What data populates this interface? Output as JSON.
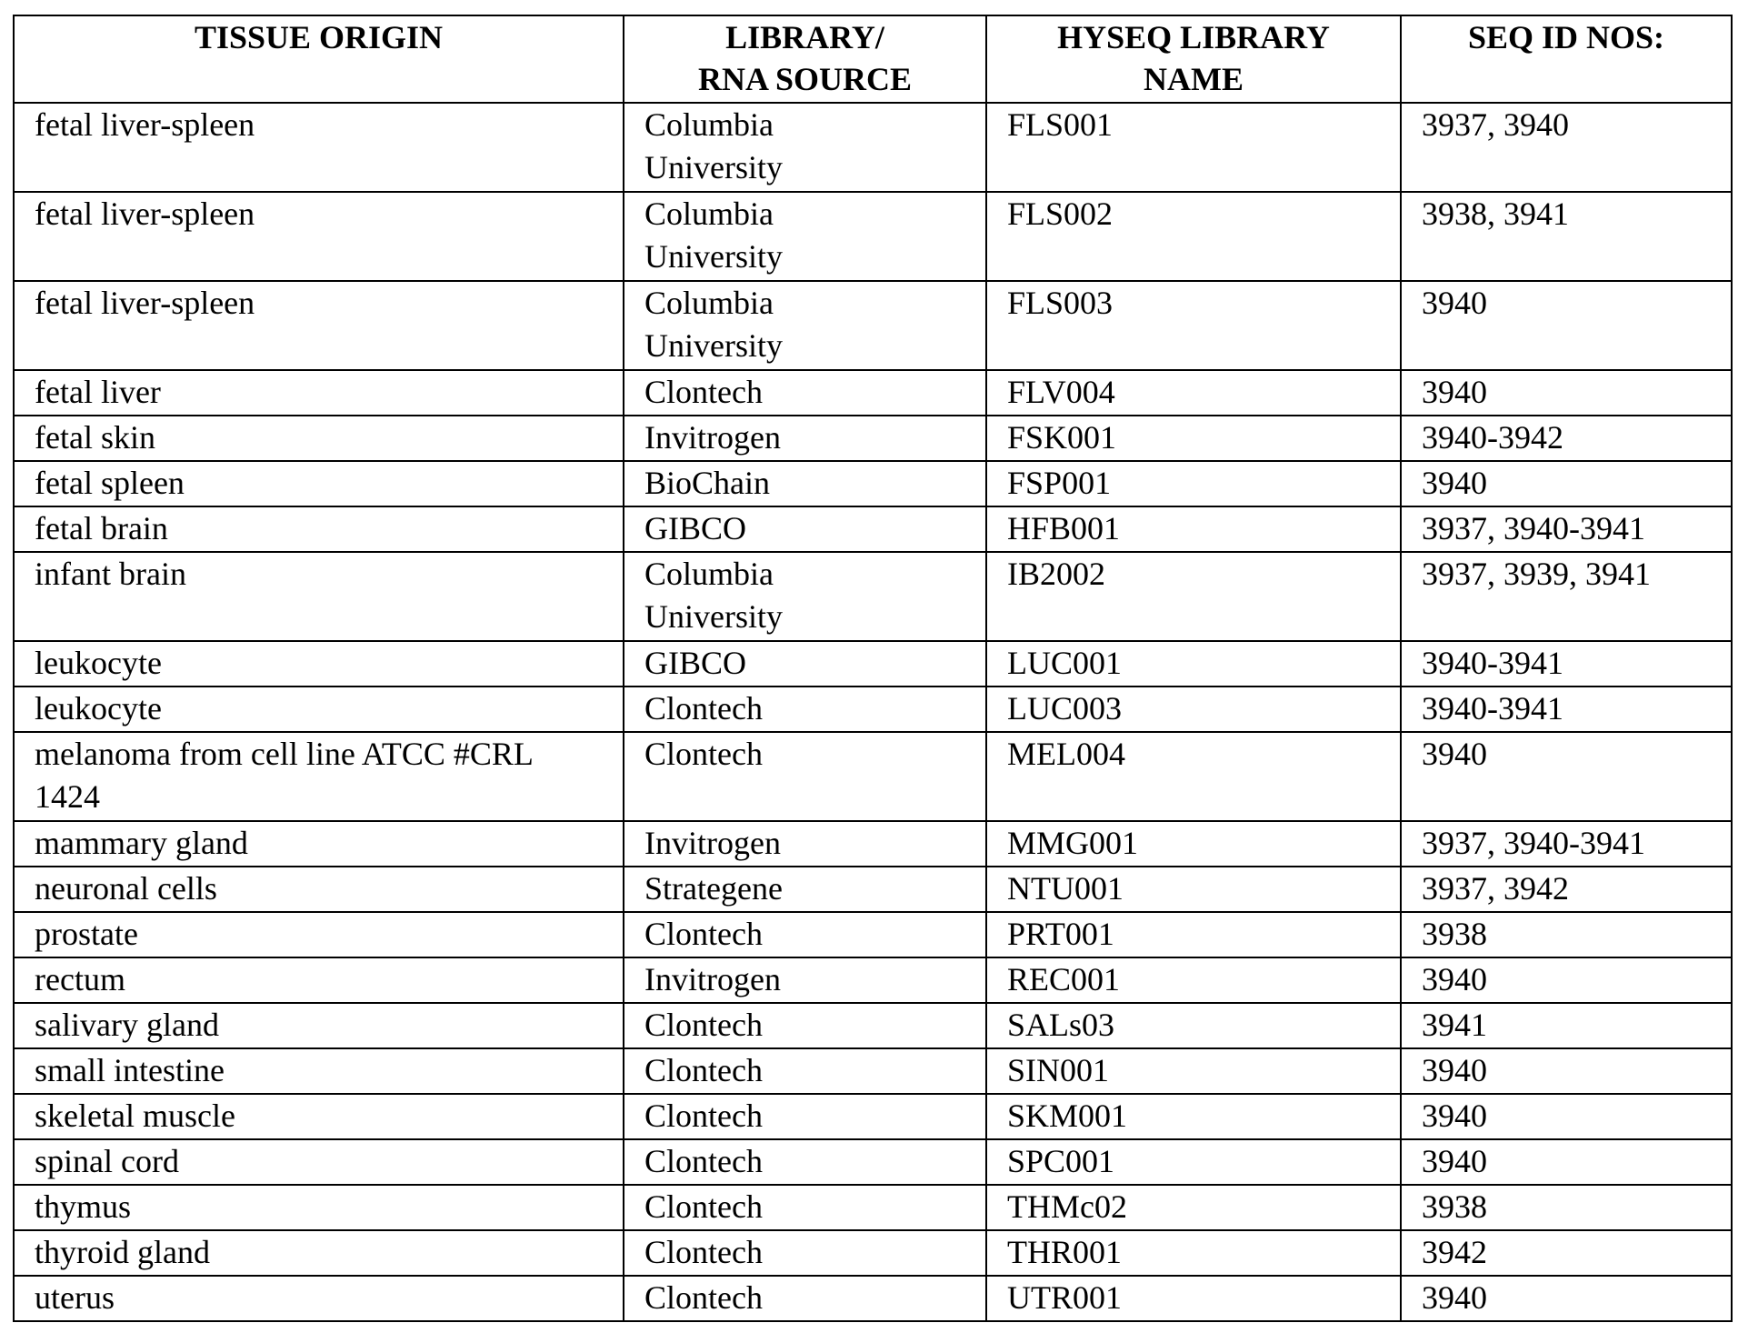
{
  "table": {
    "headers": [
      "TISSUE ORIGIN",
      "LIBRARY/\nRNA SOURCE",
      "HYSEQ LIBRARY\nNAME",
      "SEQ ID NOS:"
    ],
    "rows": [
      [
        "fetal liver-spleen",
        "Columbia University",
        "FLS001",
        "3937, 3940"
      ],
      [
        "fetal liver-spleen",
        "Columbia University",
        "FLS002",
        "3938, 3941"
      ],
      [
        "fetal liver-spleen",
        "Columbia University",
        "FLS003",
        "3940"
      ],
      [
        "fetal liver",
        "Clontech",
        "FLV004",
        "3940"
      ],
      [
        "fetal skin",
        "Invitrogen",
        "FSK001",
        "3940-3942"
      ],
      [
        "fetal spleen",
        "BioChain",
        "FSP001",
        "3940"
      ],
      [
        "fetal brain",
        "GIBCO",
        "HFB001",
        "3937, 3940-3941"
      ],
      [
        "infant brain",
        "Columbia University",
        "IB2002",
        "3937, 3939, 3941"
      ],
      [
        "leukocyte",
        "GIBCO",
        "LUC001",
        "3940-3941"
      ],
      [
        "leukocyte",
        "Clontech",
        "LUC003",
        "3940-3941"
      ],
      [
        "melanoma from cell line ATCC #CRL 1424",
        "Clontech",
        "MEL004",
        "3940"
      ],
      [
        "mammary gland",
        "Invitrogen",
        "MMG001",
        "3937, 3940-3941"
      ],
      [
        "neuronal cells",
        "Strategene",
        "NTU001",
        "3937, 3942"
      ],
      [
        "prostate",
        "Clontech",
        "PRT001",
        "3938"
      ],
      [
        "rectum",
        "Invitrogen",
        "REC001",
        "3940"
      ],
      [
        "salivary gland",
        "Clontech",
        "SALs03",
        "3941"
      ],
      [
        "small intestine",
        "Clontech",
        "SIN001",
        "3940"
      ],
      [
        "skeletal muscle",
        "Clontech",
        "SKM001",
        "3940"
      ],
      [
        "spinal cord",
        "Clontech",
        "SPC001",
        "3940"
      ],
      [
        "thymus",
        "Clontech",
        "THMc02",
        "3938"
      ],
      [
        "thyroid gland",
        "Clontech",
        "THR001",
        "3942"
      ],
      [
        "uterus",
        "Clontech",
        "UTR001",
        "3940"
      ]
    ]
  }
}
